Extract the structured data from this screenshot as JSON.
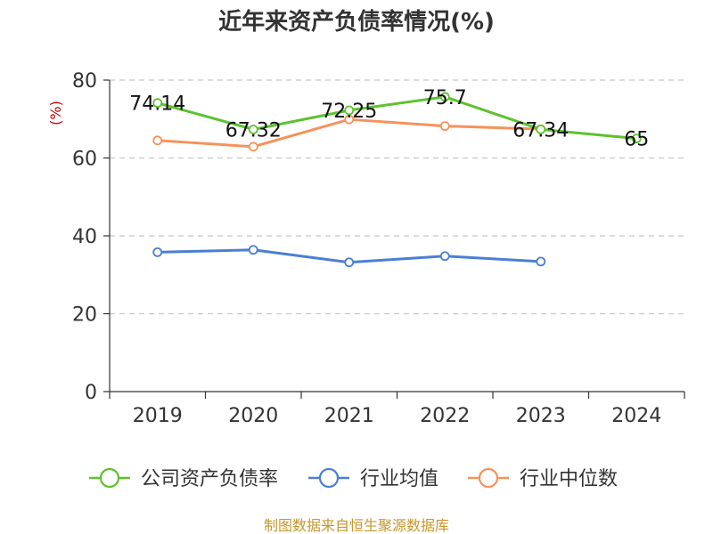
{
  "chart_data": {
    "type": "line",
    "title": "近年来资产负债率情况(%)",
    "ylabel": "(%)",
    "xlabel": "",
    "categories": [
      "2019",
      "2020",
      "2021",
      "2022",
      "2023",
      "2024"
    ],
    "ylim": [
      0,
      80
    ],
    "yticks": [
      0,
      20,
      40,
      60,
      80
    ],
    "grid": true,
    "legend_position": "bottom",
    "series": [
      {
        "name": "公司资产负债率",
        "color": "#5cc22d",
        "values": [
          74.14,
          67.32,
          72.25,
          75.7,
          67.34,
          65
        ],
        "labels": [
          "74.14",
          "67.32",
          "72.25",
          "75.7",
          "67.34",
          "65"
        ]
      },
      {
        "name": "行业均值",
        "color": "#4a7fd4",
        "values": [
          35.8,
          36.4,
          33.2,
          34.8,
          33.4,
          null
        ],
        "labels": []
      },
      {
        "name": "行业中位数",
        "color": "#f5925a",
        "values": [
          64.5,
          62.9,
          69.9,
          68.2,
          67.4,
          null
        ],
        "labels": []
      }
    ]
  },
  "source": "制图数据来自恒生聚源数据库"
}
